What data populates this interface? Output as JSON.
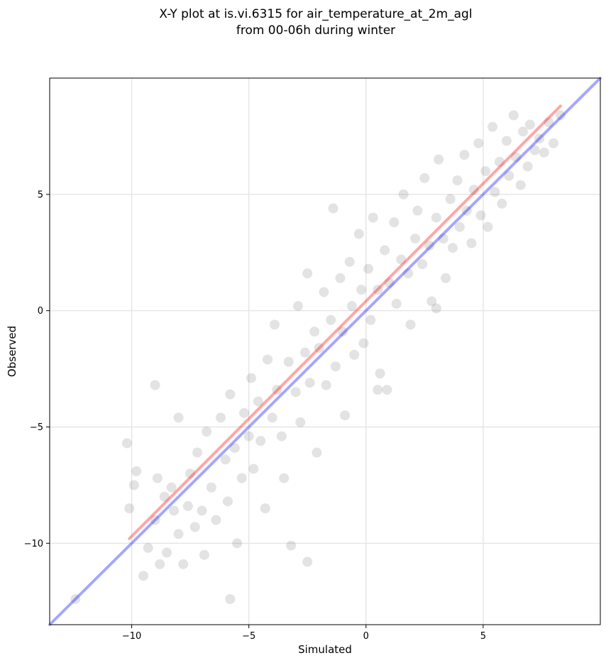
{
  "chart_data": {
    "type": "scatter",
    "title": "X-Y plot at is.vi.6315 for air_temperature_at_2m_agl",
    "subtitle": "from 00-06h during winter",
    "xlabel": "Simulated",
    "ylabel": "Observed",
    "xlim": [
      -13.5,
      10.0
    ],
    "ylim": [
      -13.5,
      10.0
    ],
    "x_ticks": [
      -10,
      -5,
      0,
      5
    ],
    "y_ticks": [
      -10,
      -5,
      0,
      5
    ],
    "x_tick_labels": [
      "−10",
      "−5",
      "0",
      "5"
    ],
    "y_tick_labels": [
      "−10",
      "−5",
      "0",
      "5"
    ],
    "grid": true,
    "point_color": "#404040",
    "sample_points": [
      [
        -10.2,
        -5.7
      ],
      [
        -10.1,
        -8.5
      ],
      [
        -9.9,
        -7.5
      ],
      [
        -9.5,
        -11.4
      ],
      [
        -9.8,
        -6.9
      ],
      [
        -9.3,
        -10.2
      ],
      [
        -9.0,
        -9.0
      ],
      [
        -8.9,
        -7.2
      ],
      [
        -8.8,
        -10.9
      ],
      [
        -8.6,
        -8.0
      ],
      [
        -8.5,
        -10.4
      ],
      [
        -8.3,
        -7.6
      ],
      [
        -8.2,
        -8.6
      ],
      [
        -8.0,
        -9.6
      ],
      [
        -8.0,
        -4.6
      ],
      [
        -7.8,
        -10.9
      ],
      [
        -7.6,
        -8.4
      ],
      [
        -7.5,
        -7.0
      ],
      [
        -7.3,
        -9.3
      ],
      [
        -7.2,
        -6.1
      ],
      [
        -7.0,
        -8.6
      ],
      [
        -6.9,
        -10.5
      ],
      [
        -6.8,
        -5.2
      ],
      [
        -6.6,
        -7.6
      ],
      [
        -6.4,
        -9.0
      ],
      [
        -6.2,
        -4.6
      ],
      [
        -6.0,
        -6.4
      ],
      [
        -5.9,
        -8.2
      ],
      [
        -5.8,
        -3.6
      ],
      [
        -5.6,
        -5.9
      ],
      [
        -5.5,
        -10.0
      ],
      [
        -5.3,
        -7.2
      ],
      [
        -5.2,
        -4.4
      ],
      [
        -5.0,
        -5.4
      ],
      [
        -4.9,
        -2.9
      ],
      [
        -4.8,
        -6.8
      ],
      [
        -4.6,
        -3.9
      ],
      [
        -4.5,
        -5.6
      ],
      [
        -4.3,
        -8.5
      ],
      [
        -4.2,
        -2.1
      ],
      [
        -4.0,
        -4.6
      ],
      [
        -3.9,
        -0.6
      ],
      [
        -3.8,
        -3.4
      ],
      [
        -3.6,
        -5.4
      ],
      [
        -3.5,
        -7.2
      ],
      [
        -3.3,
        -2.2
      ],
      [
        -3.2,
        -10.1
      ],
      [
        -3.0,
        -3.5
      ],
      [
        -2.9,
        0.2
      ],
      [
        -2.8,
        -4.8
      ],
      [
        -2.6,
        -1.8
      ],
      [
        -2.5,
        1.6
      ],
      [
        -2.4,
        -3.1
      ],
      [
        -2.2,
        -0.9
      ],
      [
        -2.1,
        -6.1
      ],
      [
        -2.0,
        -1.6
      ],
      [
        -1.8,
        0.8
      ],
      [
        -1.7,
        -3.2
      ],
      [
        -1.5,
        -0.4
      ],
      [
        -1.4,
        4.4
      ],
      [
        -1.3,
        -2.4
      ],
      [
        -1.1,
        1.4
      ],
      [
        -1.0,
        -0.9
      ],
      [
        -0.9,
        -4.5
      ],
      [
        -0.7,
        2.1
      ],
      [
        -0.6,
        0.2
      ],
      [
        -0.5,
        -1.9
      ],
      [
        -0.3,
        3.3
      ],
      [
        -0.2,
        0.9
      ],
      [
        -0.1,
        -1.4
      ],
      [
        0.1,
        1.8
      ],
      [
        0.2,
        -0.4
      ],
      [
        0.3,
        4.0
      ],
      [
        0.5,
        0.9
      ],
      [
        0.6,
        -2.7
      ],
      [
        0.8,
        2.6
      ],
      [
        0.9,
        -3.4
      ],
      [
        1.0,
        1.2
      ],
      [
        1.2,
        3.8
      ],
      [
        1.3,
        0.3
      ],
      [
        1.5,
        2.2
      ],
      [
        1.6,
        5.0
      ],
      [
        1.8,
        1.6
      ],
      [
        1.9,
        -0.6
      ],
      [
        2.1,
        3.1
      ],
      [
        2.2,
        4.3
      ],
      [
        2.4,
        2.0
      ],
      [
        2.5,
        5.7
      ],
      [
        2.7,
        2.8
      ],
      [
        2.8,
        0.4
      ],
      [
        3.0,
        4.0
      ],
      [
        3.1,
        6.5
      ],
      [
        3.3,
        3.1
      ],
      [
        3.4,
        1.4
      ],
      [
        3.6,
        4.8
      ],
      [
        3.7,
        2.7
      ],
      [
        3.9,
        5.6
      ],
      [
        4.0,
        3.6
      ],
      [
        4.2,
        6.7
      ],
      [
        4.3,
        4.3
      ],
      [
        4.5,
        2.9
      ],
      [
        4.6,
        5.2
      ],
      [
        4.8,
        7.2
      ],
      [
        4.9,
        4.1
      ],
      [
        5.1,
        6.0
      ],
      [
        5.2,
        3.6
      ],
      [
        5.4,
        7.9
      ],
      [
        5.5,
        5.1
      ],
      [
        5.7,
        6.4
      ],
      [
        5.8,
        4.6
      ],
      [
        6.0,
        7.3
      ],
      [
        6.1,
        5.8
      ],
      [
        6.3,
        8.4
      ],
      [
        6.4,
        6.6
      ],
      [
        6.6,
        5.4
      ],
      [
        6.7,
        7.7
      ],
      [
        6.9,
        6.2
      ],
      [
        7.0,
        8.0
      ],
      [
        7.2,
        6.9
      ],
      [
        7.4,
        7.4
      ],
      [
        7.6,
        6.8
      ],
      [
        7.8,
        8.1
      ],
      [
        8.0,
        7.2
      ],
      [
        8.3,
        8.4
      ],
      [
        -12.4,
        -12.4
      ],
      [
        -5.8,
        -12.4
      ],
      [
        0.5,
        -3.4
      ],
      [
        3.0,
        0.1
      ],
      [
        -2.5,
        -10.8
      ],
      [
        -9.0,
        -3.2
      ]
    ],
    "series": [
      {
        "type": "scatter",
        "color": "#404040"
      },
      {
        "type": "line",
        "color": "#ff0000",
        "x": [
          -10.1,
          8.3
        ],
        "y": [
          -9.8,
          8.8
        ]
      },
      {
        "type": "line",
        "color": "#0000ff",
        "x": [
          -13.5,
          10.0
        ],
        "y": [
          -13.5,
          10.0
        ]
      }
    ]
  }
}
